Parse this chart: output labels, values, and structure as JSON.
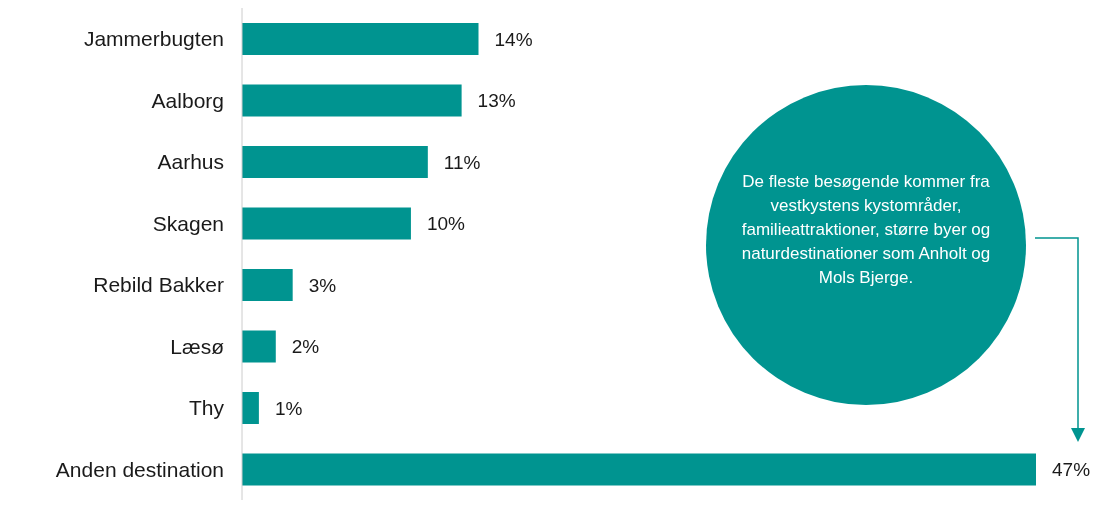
{
  "chart_data": {
    "type": "bar",
    "orientation": "horizontal",
    "categories": [
      "Jammerbugten",
      "Aalborg",
      "Aarhus",
      "Skagen",
      "Rebild Bakker",
      "Læsø",
      "Thy",
      "Anden destination"
    ],
    "values": [
      14,
      13,
      11,
      10,
      3,
      2,
      1,
      47
    ],
    "value_labels": [
      "14%",
      "13%",
      "11%",
      "10%",
      "3%",
      "2%",
      "1%",
      "47%"
    ],
    "color": "#009490",
    "grid": false,
    "legend": false,
    "annotations": [
      "De fleste besøgende kommer fra vestkystens kystområder, familieattraktioner, større byer og naturdestinationer som Anholt og Mols Bjerge."
    ]
  }
}
